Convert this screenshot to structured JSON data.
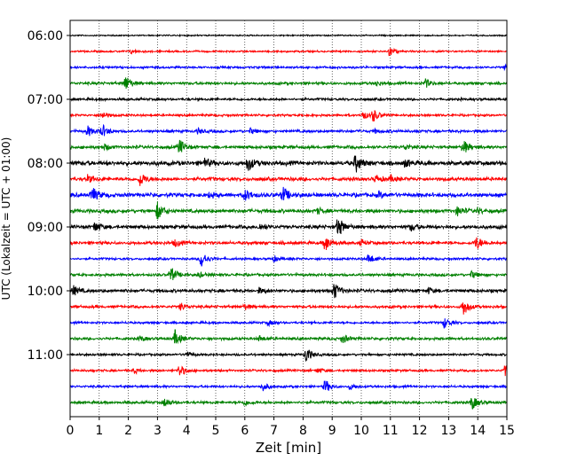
{
  "chart_data": {
    "type": "line",
    "title": "",
    "xlabel": "Zeit  [min]",
    "ylabel": "UTC (Lokalzeit = UTC + 01:00)",
    "xlim": [
      0,
      15
    ],
    "x_ticks": [
      0,
      1,
      2,
      3,
      4,
      5,
      6,
      7,
      8,
      9,
      10,
      11,
      12,
      13,
      14,
      15
    ],
    "x_tick_labels": [
      "0",
      "1",
      "2",
      "3",
      "4",
      "5",
      "6",
      "7",
      "8",
      "9",
      "10",
      "11",
      "12",
      "13",
      "14",
      "15"
    ],
    "y_tick_labels": [
      "06:00",
      "07:00",
      "08:00",
      "09:00",
      "10:00",
      "11:00"
    ],
    "grid": "vertical dotted",
    "legend": "none",
    "trace_colors": [
      "#000000",
      "#ff0000",
      "#0000ff",
      "#008000"
    ],
    "traces": [
      {
        "start": "06:00",
        "events": [],
        "noise": 0.6
      },
      {
        "start": "06:15",
        "events": [
          {
            "t": 10.95,
            "amp": 6
          },
          {
            "t": 2.1,
            "amp": 2
          }
        ],
        "noise": 0.8
      },
      {
        "start": "06:30",
        "events": [
          {
            "t": 14.95,
            "amp": 3
          }
        ],
        "noise": 1.0
      },
      {
        "start": "06:45",
        "events": [
          {
            "t": 1.9,
            "amp": 9
          },
          {
            "t": 10.5,
            "amp": 3
          },
          {
            "t": 12.2,
            "amp": 5
          }
        ],
        "noise": 1.2
      },
      {
        "start": "07:00",
        "events": [],
        "noise": 1.1
      },
      {
        "start": "07:15",
        "events": [
          {
            "t": 1.1,
            "amp": 4
          },
          {
            "t": 10.05,
            "amp": 5
          },
          {
            "t": 10.4,
            "amp": 7
          }
        ],
        "noise": 1.0
      },
      {
        "start": "07:30",
        "events": [
          {
            "t": 0.6,
            "amp": 6
          },
          {
            "t": 1.1,
            "amp": 7
          },
          {
            "t": 4.4,
            "amp": 3
          },
          {
            "t": 6.2,
            "amp": 3
          },
          {
            "t": 10.5,
            "amp": 2
          }
        ],
        "noise": 1.2
      },
      {
        "start": "07:45",
        "events": [
          {
            "t": 3.75,
            "amp": 9
          },
          {
            "t": 13.5,
            "amp": 8
          },
          {
            "t": 1.2,
            "amp": 3
          },
          {
            "t": 11.5,
            "amp": 3
          }
        ],
        "noise": 1.4
      },
      {
        "start": "08:00",
        "events": [
          {
            "t": 4.6,
            "amp": 6
          },
          {
            "t": 6.1,
            "amp": 9
          },
          {
            "t": 9.8,
            "amp": 10
          },
          {
            "t": 11.5,
            "amp": 4
          }
        ],
        "noise": 2.0
      },
      {
        "start": "08:15",
        "events": [
          {
            "t": 2.4,
            "amp": 8
          },
          {
            "t": 0.6,
            "amp": 4
          },
          {
            "t": 10.5,
            "amp": 4
          },
          {
            "t": 11.0,
            "amp": 3
          }
        ],
        "noise": 1.6
      },
      {
        "start": "08:30",
        "events": [
          {
            "t": 0.75,
            "amp": 9
          },
          {
            "t": 6.0,
            "amp": 7
          },
          {
            "t": 7.3,
            "amp": 9
          },
          {
            "t": 4.8,
            "amp": 3
          },
          {
            "t": 10.6,
            "amp": 3
          }
        ],
        "noise": 1.8
      },
      {
        "start": "08:45",
        "events": [
          {
            "t": 3.0,
            "amp": 10
          },
          {
            "t": 13.3,
            "amp": 5
          },
          {
            "t": 14.0,
            "amp": 3
          },
          {
            "t": 8.5,
            "amp": 3
          }
        ],
        "noise": 1.6
      },
      {
        "start": "09:00",
        "events": [
          {
            "t": 0.85,
            "amp": 6
          },
          {
            "t": 9.2,
            "amp": 12
          },
          {
            "t": 11.7,
            "amp": 4
          },
          {
            "t": 6.5,
            "amp": 3
          }
        ],
        "noise": 1.6
      },
      {
        "start": "09:15",
        "events": [
          {
            "t": 8.75,
            "amp": 10
          },
          {
            "t": 13.95,
            "amp": 8
          },
          {
            "t": 3.6,
            "amp": 4
          },
          {
            "t": 10.0,
            "amp": 3
          }
        ],
        "noise": 1.4
      },
      {
        "start": "09:30",
        "events": [
          {
            "t": 4.5,
            "amp": 10
          },
          {
            "t": 10.25,
            "amp": 6
          },
          {
            "t": 7.0,
            "amp": 3
          }
        ],
        "noise": 1.0
      },
      {
        "start": "09:45",
        "events": [
          {
            "t": 3.45,
            "amp": 9
          },
          {
            "t": 13.8,
            "amp": 4
          },
          {
            "t": 4.4,
            "amp": 3
          }
        ],
        "noise": 1.2
      },
      {
        "start": "10:00",
        "events": [
          {
            "t": 0.1,
            "amp": 6
          },
          {
            "t": 9.05,
            "amp": 10
          },
          {
            "t": 12.3,
            "amp": 3
          },
          {
            "t": 6.5,
            "amp": 3
          }
        ],
        "noise": 1.4
      },
      {
        "start": "10:15",
        "events": [
          {
            "t": 13.5,
            "amp": 10
          },
          {
            "t": 3.8,
            "amp": 4
          },
          {
            "t": 6.0,
            "amp": 3
          }
        ],
        "noise": 1.2
      },
      {
        "start": "10:30",
        "events": [
          {
            "t": 12.85,
            "amp": 6
          },
          {
            "t": 6.8,
            "amp": 3
          }
        ],
        "noise": 1.0
      },
      {
        "start": "10:45",
        "events": [
          {
            "t": 3.6,
            "amp": 9
          },
          {
            "t": 9.35,
            "amp": 5
          },
          {
            "t": 2.4,
            "amp": 3
          },
          {
            "t": 6.5,
            "amp": 3
          }
        ],
        "noise": 1.2
      },
      {
        "start": "11:00",
        "events": [
          {
            "t": 8.1,
            "amp": 9
          },
          {
            "t": 4.0,
            "amp": 3
          }
        ],
        "noise": 1.0
      },
      {
        "start": "11:15",
        "events": [
          {
            "t": 3.75,
            "amp": 7
          },
          {
            "t": 14.95,
            "amp": 7
          },
          {
            "t": 2.2,
            "amp": 3
          },
          {
            "t": 8.5,
            "amp": 3
          }
        ],
        "noise": 1.0
      },
      {
        "start": "11:30",
        "events": [
          {
            "t": 6.6,
            "amp": 5
          },
          {
            "t": 8.75,
            "amp": 8
          },
          {
            "t": 9.6,
            "amp": 3
          }
        ],
        "noise": 1.0
      },
      {
        "start": "11:45",
        "events": [
          {
            "t": 3.25,
            "amp": 5
          },
          {
            "t": 13.8,
            "amp": 8
          },
          {
            "t": 6.0,
            "amp": 3
          }
        ],
        "noise": 1.2
      }
    ]
  }
}
